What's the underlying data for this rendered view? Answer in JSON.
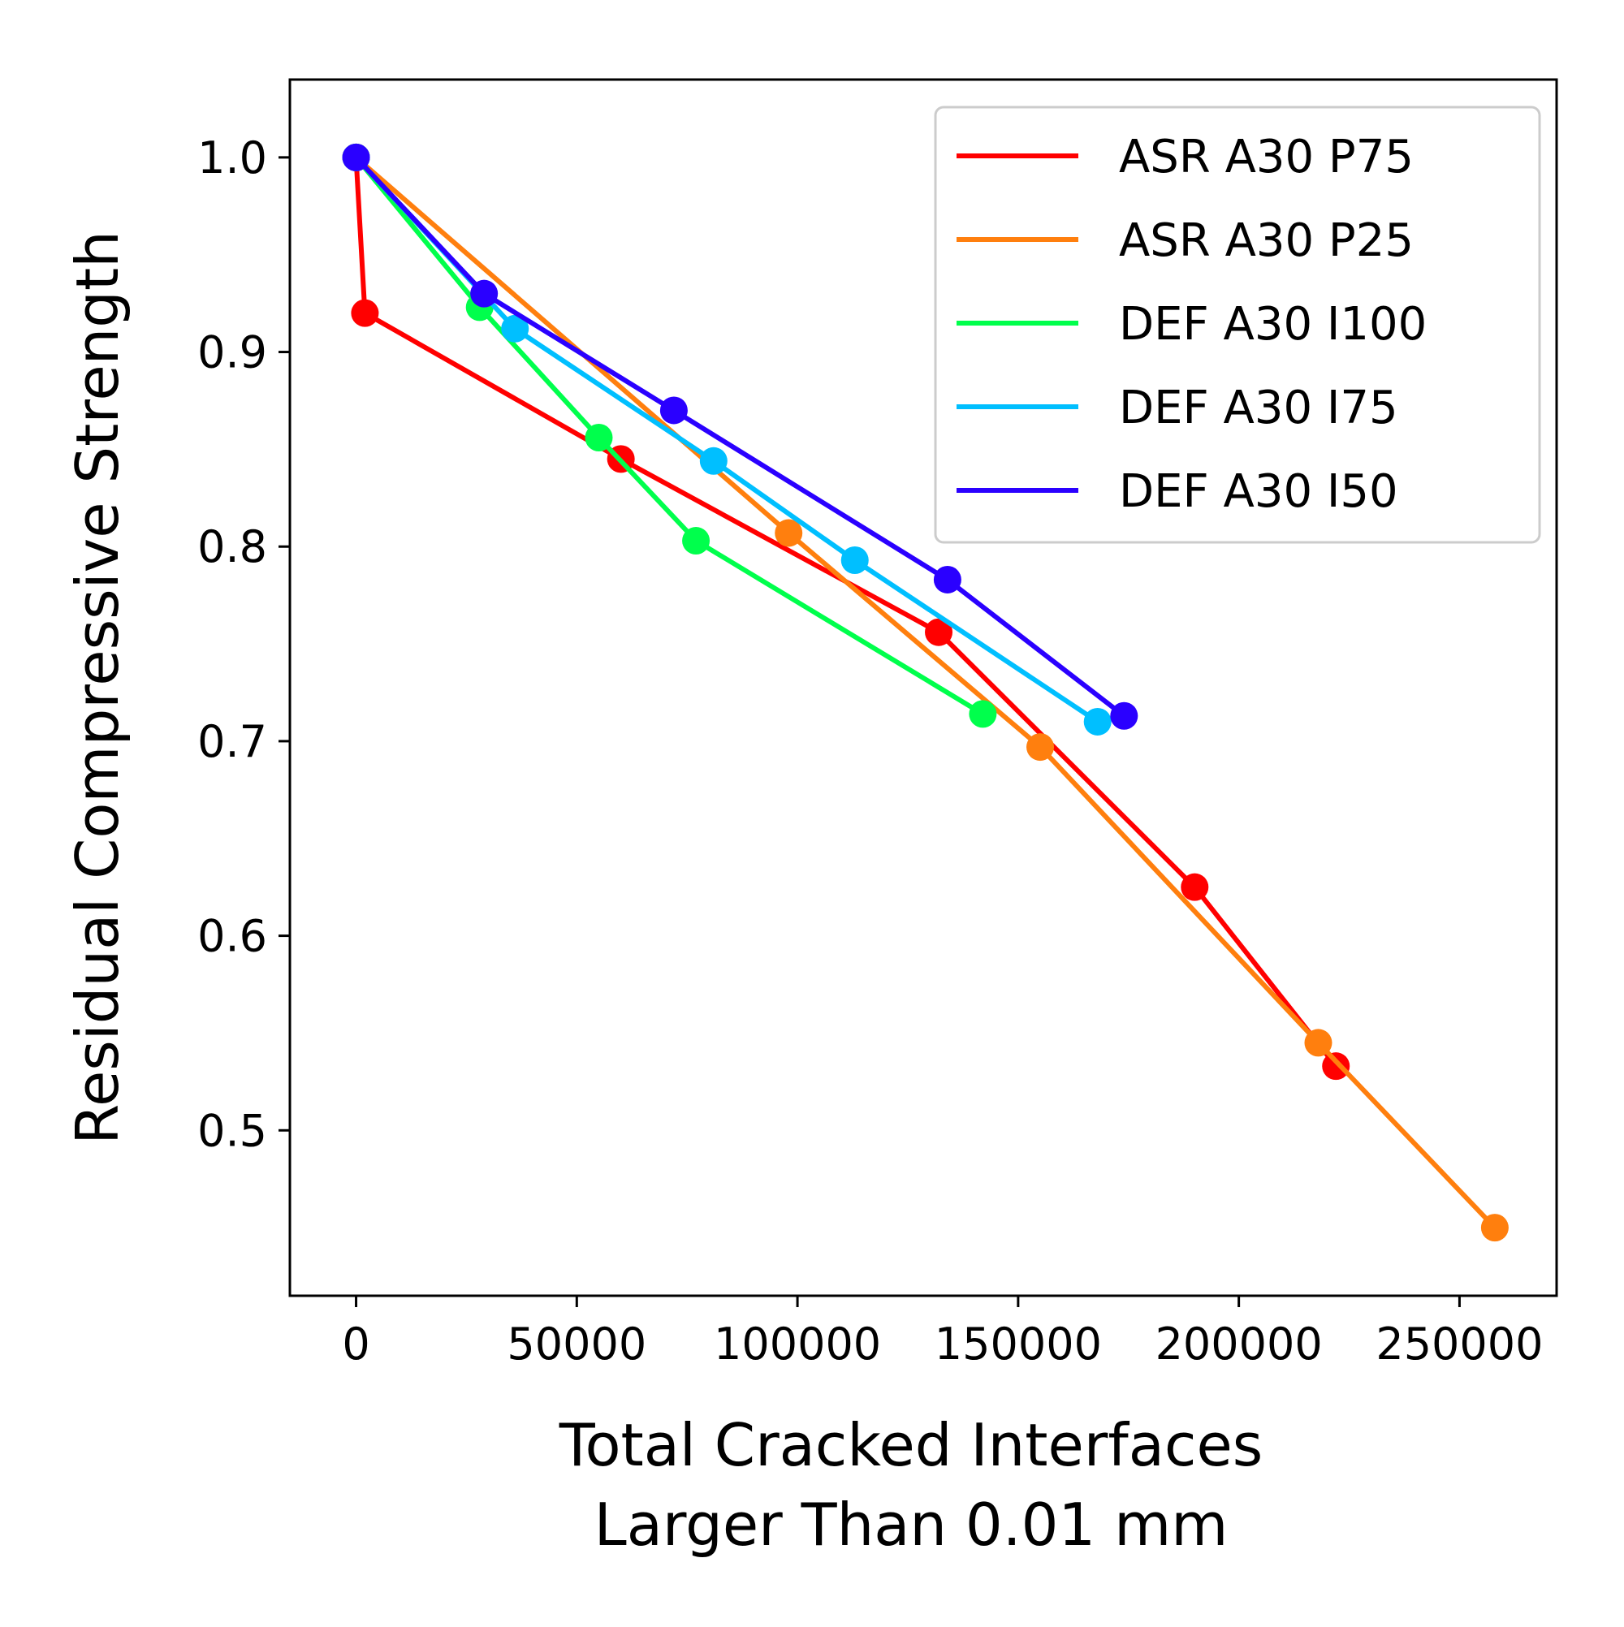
{
  "chart_data": {
    "type": "line",
    "xlabel": "Total Cracked Interfaces\nLarger Than 0.01 mm",
    "ylabel": "Residual Compressive Strength",
    "xlim": [
      -15000,
      272000
    ],
    "ylim": [
      0.415,
      1.04
    ],
    "xticks": [
      0,
      50000,
      100000,
      150000,
      200000,
      250000
    ],
    "yticks": [
      0.5,
      0.6,
      0.7,
      0.8,
      0.9,
      1.0
    ],
    "xtick_labels": [
      "0",
      "50000",
      "100000",
      "150000",
      "200000",
      "250000"
    ],
    "ytick_labels": [
      "0.5",
      "0.6",
      "0.7",
      "0.8",
      "0.9",
      "1.0"
    ],
    "grid": false,
    "legend_position": "top-right",
    "series": [
      {
        "name": "ASR A30 P75",
        "color": "#ff0000",
        "points": [
          [
            0,
            1.0
          ],
          [
            2000,
            0.92
          ],
          [
            60000,
            0.845
          ],
          [
            132000,
            0.756
          ],
          [
            190000,
            0.625
          ],
          [
            222000,
            0.533
          ]
        ]
      },
      {
        "name": "ASR A30 P25",
        "color": "#ff7f0e",
        "points": [
          [
            0,
            1.0
          ],
          [
            98000,
            0.807
          ],
          [
            155000,
            0.697
          ],
          [
            218000,
            0.545
          ],
          [
            258000,
            0.45
          ]
        ]
      },
      {
        "name": "DEF A30 I100",
        "color": "#00ff4c",
        "points": [
          [
            0,
            1.0
          ],
          [
            28000,
            0.923
          ],
          [
            55000,
            0.856
          ],
          [
            77000,
            0.803
          ],
          [
            142000,
            0.714
          ]
        ]
      },
      {
        "name": "DEF A30 I75",
        "color": "#00bfff",
        "points": [
          [
            0,
            1.0
          ],
          [
            36000,
            0.912
          ],
          [
            81000,
            0.844
          ],
          [
            113000,
            0.793
          ],
          [
            168000,
            0.71
          ]
        ]
      },
      {
        "name": "DEF A30 I50",
        "color": "#2a00ff",
        "points": [
          [
            0,
            1.0
          ],
          [
            29000,
            0.93
          ],
          [
            72000,
            0.87
          ],
          [
            134000,
            0.783
          ],
          [
            174000,
            0.713
          ]
        ]
      }
    ]
  }
}
